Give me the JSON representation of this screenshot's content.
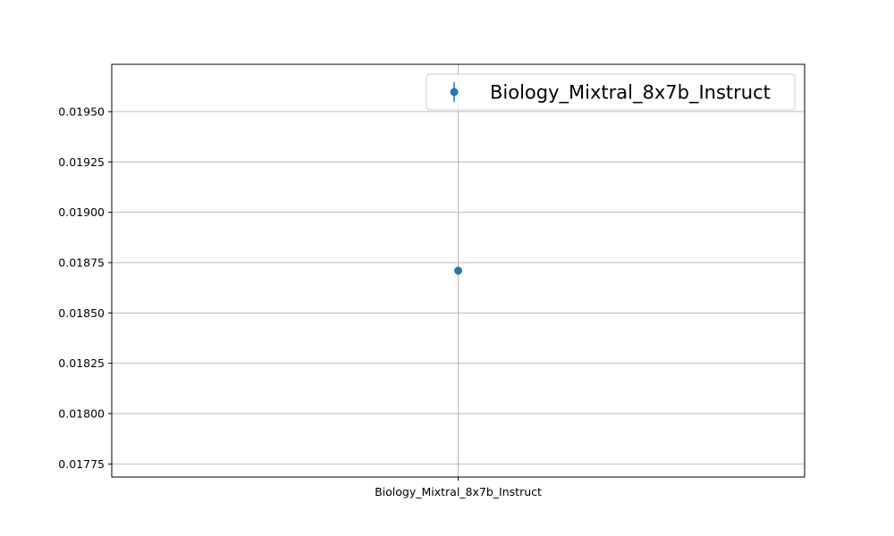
{
  "chart_data": {
    "type": "scatter",
    "title": "",
    "xlabel": "",
    "ylabel": "",
    "categories": [
      "Biology_Mixtral_8x7b_Instruct"
    ],
    "series": [
      {
        "name": "Biology_Mixtral_8x7b_Instruct",
        "x": [
          "Biology_Mixtral_8x7b_Instruct"
        ],
        "y": [
          0.01871
        ],
        "error": [
          0.0
        ],
        "color": "#1f77b4"
      }
    ],
    "ylim": [
      0.017685,
      0.019735
    ],
    "yticks": [
      0.01775,
      0.018,
      0.01825,
      0.0185,
      0.01875,
      0.019,
      0.01925,
      0.0195
    ],
    "ytick_labels": [
      "0.01775",
      "0.01800",
      "0.01825",
      "0.01850",
      "0.01875",
      "0.01900",
      "0.01925",
      "0.01950"
    ],
    "grid": true,
    "legend": {
      "position": "upper-right",
      "entries": [
        "Biology_Mixtral_8x7b_Instruct"
      ]
    }
  }
}
